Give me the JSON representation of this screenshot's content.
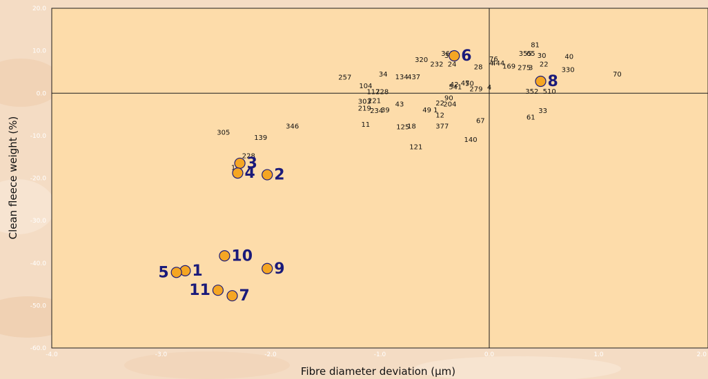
{
  "chart_data": {
    "type": "scatter",
    "xlabel": "Fibre diameter deviation (µm)",
    "ylabel": "Clean fleece weight (%)",
    "xlim": [
      -4.0,
      2.0
    ],
    "ylim": [
      -60.0,
      20.0
    ],
    "x_ticks": [
      "-4.0",
      "-3.0",
      "-2.0",
      "-1.0",
      "0.0",
      "1.0",
      "2.0"
    ],
    "y_ticks": [
      "20.0",
      "10.0",
      "0.0",
      "-10.0",
      "-20.0",
      "-30.0",
      "-40.0",
      "-50.0",
      "-60.0"
    ],
    "reference_lines": {
      "x": 0.0,
      "y": 0.0
    },
    "grid": false,
    "colors": {
      "plot_background": "#fddcaa",
      "marker_fill": "#f5a623",
      "marker_edge": "#1a1a7a",
      "highlight_label": "#1a1a7a",
      "plain_label": "#111111",
      "tick_text": "#ffffff"
    },
    "highlighted_points": [
      {
        "label": "1",
        "x": -2.78,
        "y": -41.8
      },
      {
        "label": "2",
        "x": -2.03,
        "y": -19.2
      },
      {
        "label": "3",
        "x": -2.28,
        "y": -16.5
      },
      {
        "label": "4",
        "x": -2.3,
        "y": -18.8
      },
      {
        "label": "5",
        "x": -2.86,
        "y": -42.2
      },
      {
        "label": "6",
        "x": -0.32,
        "y": 8.8
      },
      {
        "label": "7",
        "x": -2.35,
        "y": -47.7
      },
      {
        "label": "8",
        "x": 0.47,
        "y": 2.8
      },
      {
        "label": "9",
        "x": -2.03,
        "y": -41.3
      },
      {
        "label": "10",
        "x": -2.42,
        "y": -38.3
      },
      {
        "label": "11",
        "x": -2.48,
        "y": -46.4
      }
    ],
    "text_points": [
      {
        "label": "81",
        "x": 0.42,
        "y": 11.3
      },
      {
        "label": "355",
        "x": 0.33,
        "y": 9.3
      },
      {
        "label": "65",
        "x": 0.38,
        "y": 9.3
      },
      {
        "label": "30",
        "x": 0.48,
        "y": 8.8
      },
      {
        "label": "40",
        "x": 0.73,
        "y": 8.6
      },
      {
        "label": "22",
        "x": 0.5,
        "y": 6.8
      },
      {
        "label": "275",
        "x": 0.32,
        "y": 6.0
      },
      {
        "label": "3",
        "x": 0.38,
        "y": 6.0
      },
      {
        "label": "330",
        "x": 0.72,
        "y": 5.5
      },
      {
        "label": "70",
        "x": 1.17,
        "y": 4.4
      },
      {
        "label": "352",
        "x": 0.39,
        "y": 0.4
      },
      {
        "label": "510",
        "x": 0.55,
        "y": 0.4
      },
      {
        "label": "33",
        "x": 0.49,
        "y": -4.2
      },
      {
        "label": "61",
        "x": 0.38,
        "y": -5.7
      },
      {
        "label": "76",
        "x": 0.04,
        "y": 8.0
      },
      {
        "label": "4",
        "x": 0.02,
        "y": 7.0
      },
      {
        "label": "444",
        "x": 0.08,
        "y": 7.0
      },
      {
        "label": "169",
        "x": 0.18,
        "y": 6.3
      },
      {
        "label": "28",
        "x": -0.1,
        "y": 6.1
      },
      {
        "label": "365",
        "x": -0.38,
        "y": 9.3
      },
      {
        "label": "345",
        "x": -0.35,
        "y": 8.8
      },
      {
        "label": "320",
        "x": -0.62,
        "y": 7.8
      },
      {
        "label": "232",
        "x": -0.48,
        "y": 6.8
      },
      {
        "label": "24",
        "x": -0.34,
        "y": 6.8
      },
      {
        "label": "34",
        "x": -0.97,
        "y": 4.4
      },
      {
        "label": "134",
        "x": -0.8,
        "y": 3.8
      },
      {
        "label": "437",
        "x": -0.69,
        "y": 3.8
      },
      {
        "label": "257",
        "x": -1.32,
        "y": 3.7
      },
      {
        "label": "104",
        "x": -1.13,
        "y": 1.7
      },
      {
        "label": "42",
        "x": -0.32,
        "y": 2.0
      },
      {
        "label": "47",
        "x": -0.22,
        "y": 2.3
      },
      {
        "label": "50",
        "x": -0.18,
        "y": 2.2
      },
      {
        "label": "4",
        "x": 0.0,
        "y": 1.3
      },
      {
        "label": "541",
        "x": -0.31,
        "y": 1.4
      },
      {
        "label": "279",
        "x": -0.12,
        "y": 0.9
      },
      {
        "label": "117",
        "x": -1.06,
        "y": 0.3
      },
      {
        "label": "228",
        "x": -0.98,
        "y": 0.3
      },
      {
        "label": "90",
        "x": -0.37,
        "y": -1.2
      },
      {
        "label": "303",
        "x": -1.14,
        "y": -2.0
      },
      {
        "label": "221",
        "x": -1.05,
        "y": -1.8
      },
      {
        "label": "43",
        "x": -0.82,
        "y": -2.6
      },
      {
        "label": "22",
        "x": -0.45,
        "y": -2.4
      },
      {
        "label": "204",
        "x": -0.36,
        "y": -2.6
      },
      {
        "label": "219",
        "x": -1.14,
        "y": -3.6
      },
      {
        "label": "234",
        "x": -1.03,
        "y": -4.2
      },
      {
        "label": "39",
        "x": -0.95,
        "y": -4.0
      },
      {
        "label": "49",
        "x": -0.57,
        "y": -4.0
      },
      {
        "label": "1",
        "x": -0.49,
        "y": -4.0
      },
      {
        "label": "12",
        "x": -0.45,
        "y": -5.2
      },
      {
        "label": "67",
        "x": -0.08,
        "y": -6.5
      },
      {
        "label": "11",
        "x": -1.13,
        "y": -7.4
      },
      {
        "label": "125",
        "x": -0.79,
        "y": -8.0
      },
      {
        "label": "18",
        "x": -0.71,
        "y": -7.8
      },
      {
        "label": "377",
        "x": -0.43,
        "y": -7.8
      },
      {
        "label": "346",
        "x": -1.8,
        "y": -7.8
      },
      {
        "label": "305",
        "x": -2.43,
        "y": -9.3
      },
      {
        "label": "139",
        "x": -2.09,
        "y": -10.5
      },
      {
        "label": "140",
        "x": -0.17,
        "y": -11.0
      },
      {
        "label": "121",
        "x": -0.67,
        "y": -12.7
      },
      {
        "label": "228",
        "x": -2.2,
        "y": -14.8
      },
      {
        "label": "17",
        "x": -2.32,
        "y": -17.6
      }
    ]
  }
}
